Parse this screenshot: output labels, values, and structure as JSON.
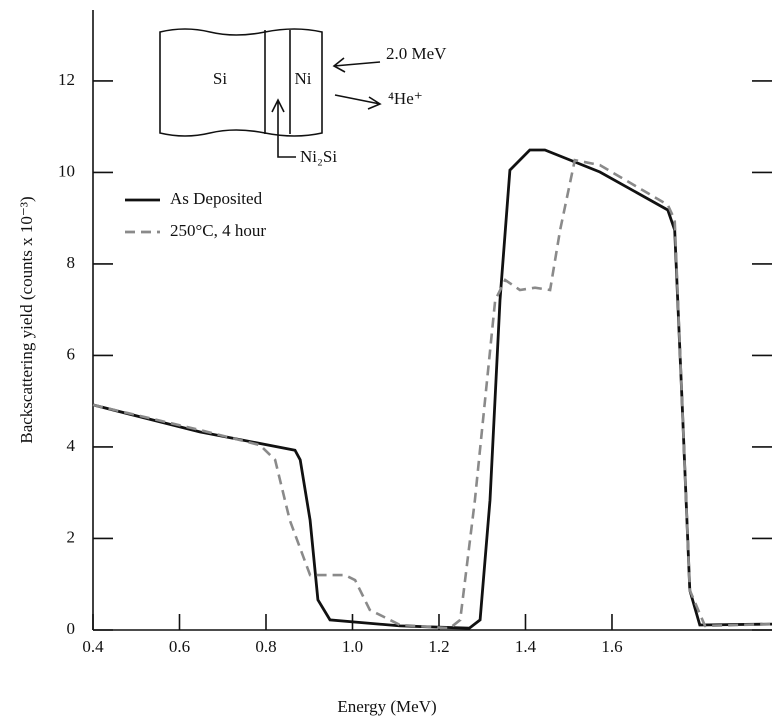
{
  "chart_data": {
    "type": "line",
    "xlabel": "Energy (MeV)",
    "ylabel": "Backscattering yield (counts x 10⁻³)",
    "xlim": [
      0.4,
      1.97
    ],
    "ylim": [
      0,
      13.55
    ],
    "xticks": [
      0.4,
      0.6,
      0.8,
      1.0,
      1.2,
      1.4,
      1.6
    ],
    "yticks": [
      0,
      2,
      4,
      6,
      8,
      10,
      12
    ],
    "legend": "upper left",
    "annotations": {
      "si": "Si",
      "ni": "Ni",
      "energy": "2.0 MeV",
      "ion": "⁴He⁺",
      "silicide": "Ni₂Si"
    },
    "series": [
      {
        "name": "As Deposited",
        "color": "#111111",
        "style": "solid",
        "x": [
          0.4,
          0.647,
          0.867,
          0.879,
          0.902,
          0.92,
          0.948,
          1.11,
          1.27,
          1.295,
          1.318,
          1.341,
          1.364,
          1.41,
          1.445,
          1.572,
          1.729,
          1.745,
          1.762,
          1.78,
          1.803,
          1.97
        ],
        "values": [
          4.92,
          4.33,
          3.93,
          3.72,
          2.4,
          0.66,
          0.22,
          0.09,
          0.04,
          0.22,
          2.84,
          7.21,
          10.05,
          10.49,
          10.49,
          10.01,
          9.18,
          8.74,
          5.03,
          0.87,
          0.11,
          0.13
        ]
      },
      {
        "name": "250°C, 4 hour",
        "color": "#8a8a8a",
        "style": "dashed",
        "x": [
          0.4,
          0.647,
          0.786,
          0.821,
          0.855,
          0.902,
          0.948,
          0.983,
          1.006,
          1.04,
          1.11,
          1.225,
          1.249,
          1.283,
          1.33,
          1.353,
          1.387,
          1.422,
          1.457,
          1.48,
          1.514,
          1.572,
          1.729,
          1.745,
          1.762,
          1.78,
          1.815,
          1.97
        ],
        "values": [
          4.92,
          4.37,
          4.04,
          3.72,
          2.4,
          1.2,
          1.2,
          1.2,
          1.09,
          0.44,
          0.11,
          0.04,
          0.22,
          2.84,
          7.21,
          7.65,
          7.43,
          7.48,
          7.43,
          8.74,
          10.27,
          10.16,
          9.29,
          8.96,
          5.03,
          0.87,
          0.09,
          0.13
        ]
      }
    ]
  }
}
